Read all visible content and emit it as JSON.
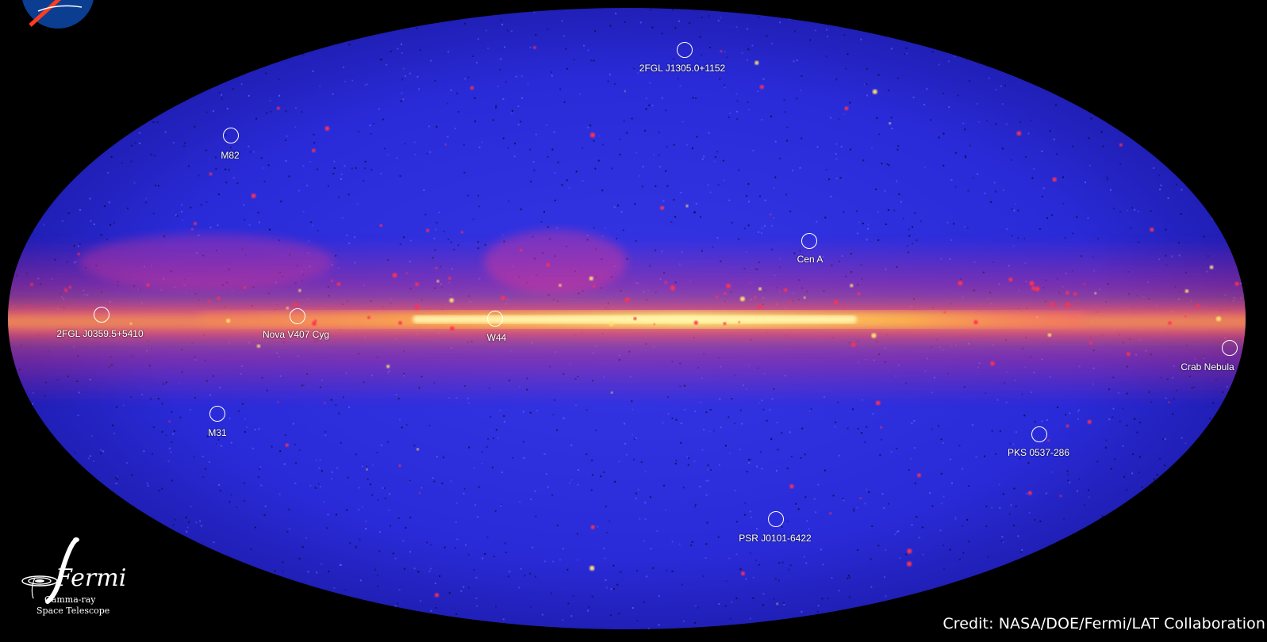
{
  "image": {
    "description_colors": {
      "background": "#000000",
      "sky_field": "#2a2bdc",
      "plane_outer": "#ff2a6a",
      "plane_core": "#ffd84a",
      "bright_source": "#ffffff"
    }
  },
  "sources": [
    {
      "name": "2FGL J1305.0+1152"
    },
    {
      "name": "M82"
    },
    {
      "name": "Cen A"
    },
    {
      "name": "2FGL J0359.5+5410"
    },
    {
      "name": "Nova V407 Cyg"
    },
    {
      "name": "W44"
    },
    {
      "name": "Crab Nebula"
    },
    {
      "name": "M31"
    },
    {
      "name": "PKS 0537-286"
    },
    {
      "name": "PSR J0101-6422"
    }
  ],
  "credit": "Credit: NASA/DOE/Fermi/LAT Collaboration",
  "logo": {
    "fermi_word": "Fermi",
    "fermi_line1": "Gamma-ray",
    "fermi_line2": "Space Telescope"
  }
}
